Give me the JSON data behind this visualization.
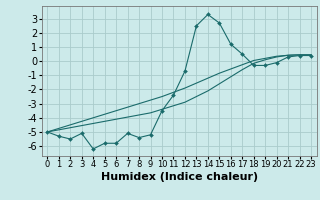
{
  "title": "",
  "xlabel": "Humidex (Indice chaleur)",
  "background_color": "#cceaea",
  "grid_color": "#aacccc",
  "line_color": "#1a6b6b",
  "xlim": [
    -0.5,
    23.5
  ],
  "ylim": [
    -6.7,
    3.9
  ],
  "x": [
    0,
    1,
    2,
    3,
    4,
    5,
    6,
    7,
    8,
    9,
    10,
    11,
    12,
    13,
    14,
    15,
    16,
    17,
    18,
    19,
    20,
    21,
    22,
    23
  ],
  "y_main": [
    -5.0,
    -5.3,
    -5.5,
    -5.1,
    -6.2,
    -5.8,
    -5.8,
    -5.1,
    -5.4,
    -5.2,
    -3.5,
    -2.4,
    -0.7,
    2.5,
    3.3,
    2.7,
    1.2,
    0.5,
    -0.3,
    -0.3,
    -0.1,
    0.3,
    0.4,
    0.4
  ],
  "y_line1": [
    -5.0,
    -4.75,
    -4.5,
    -4.25,
    -4.0,
    -3.75,
    -3.5,
    -3.25,
    -3.0,
    -2.75,
    -2.5,
    -2.2,
    -1.9,
    -1.55,
    -1.2,
    -0.85,
    -0.55,
    -0.25,
    0.05,
    0.2,
    0.35,
    0.42,
    0.45,
    0.45
  ],
  "y_line2": [
    -5.0,
    -4.85,
    -4.7,
    -4.55,
    -4.4,
    -4.25,
    -4.1,
    -3.95,
    -3.8,
    -3.65,
    -3.4,
    -3.15,
    -2.9,
    -2.5,
    -2.1,
    -1.6,
    -1.1,
    -0.6,
    -0.15,
    0.1,
    0.3,
    0.42,
    0.45,
    0.45
  ],
  "xticks": [
    0,
    1,
    2,
    3,
    4,
    5,
    6,
    7,
    8,
    9,
    10,
    11,
    12,
    13,
    14,
    15,
    16,
    17,
    18,
    19,
    20,
    21,
    22,
    23
  ],
  "yticks": [
    -6,
    -5,
    -4,
    -3,
    -2,
    -1,
    0,
    1,
    2,
    3
  ],
  "fontsize_xlabel": 8,
  "fontsize_ytick": 7,
  "fontsize_xtick": 6
}
